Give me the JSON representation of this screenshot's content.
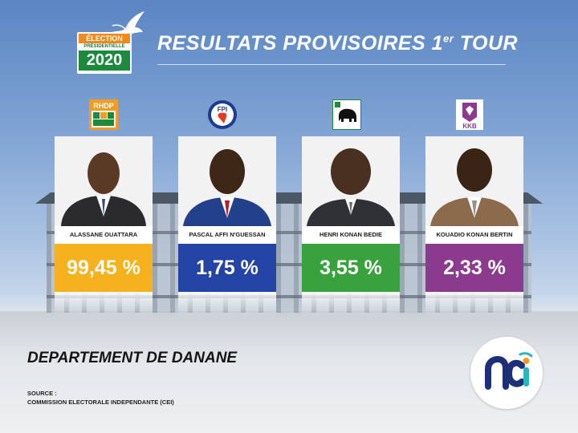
{
  "header": {
    "logo": {
      "line1": "ÉLECTION",
      "line2": "PRÉSIDENTIELLE",
      "line3": "2020"
    },
    "title_main": "RESULTATS PROVISOIRES 1",
    "title_sup": "er",
    "title_end": " TOUR"
  },
  "candidates": [
    {
      "name": "ALASSANE OUATTARA",
      "party": "RHDP",
      "percent": "99,45 %",
      "percent_value": 99.45,
      "color": "#f5b11e"
    },
    {
      "name": "PASCAL AFFI N'GUESSAN",
      "party": "FPI",
      "percent": "1,75 %",
      "percent_value": 1.75,
      "color": "#2343a5"
    },
    {
      "name": "HENRI KONAN BEDIE",
      "party": "PDCI",
      "percent": "3,55 %",
      "percent_value": 3.55,
      "color": "#3aa23c"
    },
    {
      "name": "KOUADIO KONAN BERTIN",
      "party": "KKB",
      "percent": "2,33 %",
      "percent_value": 2.33,
      "color": "#8c3a8e"
    }
  ],
  "department": "DEPARTEMENT DE DANANE",
  "source": {
    "label": "SOURCE :",
    "text": "COMMISSION ELECTORALE INDEPENDANTE (CEI)"
  },
  "broadcaster_logo": "nci",
  "icons": [
    "dove-icon",
    "elephant-icon",
    "africa-map-icon"
  ]
}
